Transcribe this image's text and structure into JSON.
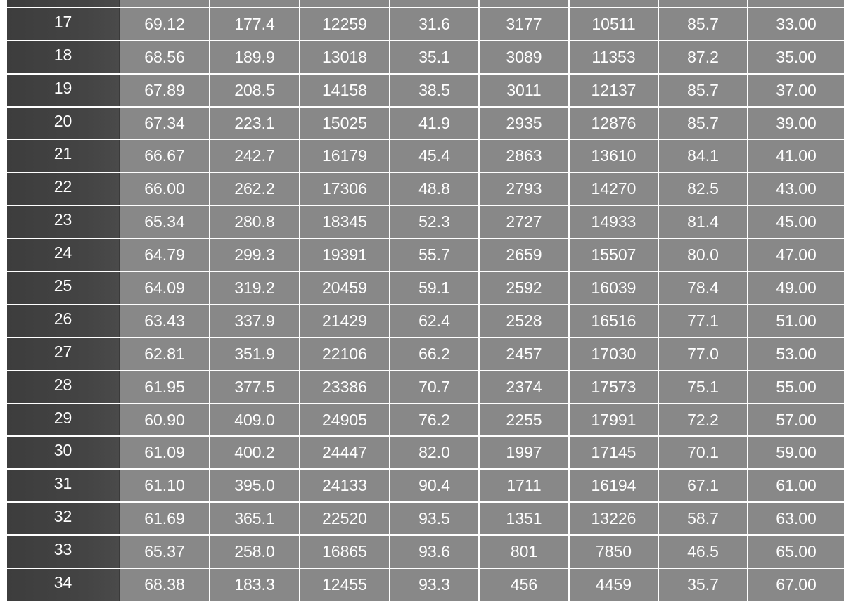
{
  "table": {
    "rows": [
      {
        "idx": "",
        "cells": [
          "",
          "",
          "",
          "",
          "",
          "",
          "",
          ""
        ]
      },
      {
        "idx": "17",
        "cells": [
          "69.12",
          "177.4",
          "12259",
          "31.6",
          "3177",
          "10511",
          "85.7",
          "33.00"
        ]
      },
      {
        "idx": "18",
        "cells": [
          "68.56",
          "189.9",
          "13018",
          "35.1",
          "3089",
          "11353",
          "87.2",
          "35.00"
        ]
      },
      {
        "idx": "19",
        "cells": [
          "67.89",
          "208.5",
          "14158",
          "38.5",
          "3011",
          "12137",
          "85.7",
          "37.00"
        ]
      },
      {
        "idx": "20",
        "cells": [
          "67.34",
          "223.1",
          "15025",
          "41.9",
          "2935",
          "12876",
          "85.7",
          "39.00"
        ]
      },
      {
        "idx": "21",
        "cells": [
          "66.67",
          "242.7",
          "16179",
          "45.4",
          "2863",
          "13610",
          "84.1",
          "41.00"
        ]
      },
      {
        "idx": "22",
        "cells": [
          "66.00",
          "262.2",
          "17306",
          "48.8",
          "2793",
          "14270",
          "82.5",
          "43.00"
        ]
      },
      {
        "idx": "23",
        "cells": [
          "65.34",
          "280.8",
          "18345",
          "52.3",
          "2727",
          "14933",
          "81.4",
          "45.00"
        ]
      },
      {
        "idx": "24",
        "cells": [
          "64.79",
          "299.3",
          "19391",
          "55.7",
          "2659",
          "15507",
          "80.0",
          "47.00"
        ]
      },
      {
        "idx": "25",
        "cells": [
          "64.09",
          "319.2",
          "20459",
          "59.1",
          "2592",
          "16039",
          "78.4",
          "49.00"
        ]
      },
      {
        "idx": "26",
        "cells": [
          "63.43",
          "337.9",
          "21429",
          "62.4",
          "2528",
          "16516",
          "77.1",
          "51.00"
        ]
      },
      {
        "idx": "27",
        "cells": [
          "62.81",
          "351.9",
          "22106",
          "66.2",
          "2457",
          "17030",
          "77.0",
          "53.00"
        ]
      },
      {
        "idx": "28",
        "cells": [
          "61.95",
          "377.5",
          "23386",
          "70.7",
          "2374",
          "17573",
          "75.1",
          "55.00"
        ]
      },
      {
        "idx": "29",
        "cells": [
          "60.90",
          "409.0",
          "24905",
          "76.2",
          "2255",
          "17991",
          "72.2",
          "57.00"
        ]
      },
      {
        "idx": "30",
        "cells": [
          "61.09",
          "400.2",
          "24447",
          "82.0",
          "1997",
          "17145",
          "70.1",
          "59.00"
        ]
      },
      {
        "idx": "31",
        "cells": [
          "61.10",
          "395.0",
          "24133",
          "90.4",
          "1711",
          "16194",
          "67.1",
          "61.00"
        ]
      },
      {
        "idx": "32",
        "cells": [
          "61.69",
          "365.1",
          "22520",
          "93.5",
          "1351",
          "13226",
          "58.7",
          "63.00"
        ]
      },
      {
        "idx": "33",
        "cells": [
          "65.37",
          "258.0",
          "16865",
          "93.6",
          "801",
          "7850",
          "46.5",
          "65.00"
        ]
      },
      {
        "idx": "34",
        "cells": [
          "68.38",
          "183.3",
          "12455",
          "93.3",
          "456",
          "4459",
          "35.7",
          "67.00"
        ]
      }
    ]
  }
}
